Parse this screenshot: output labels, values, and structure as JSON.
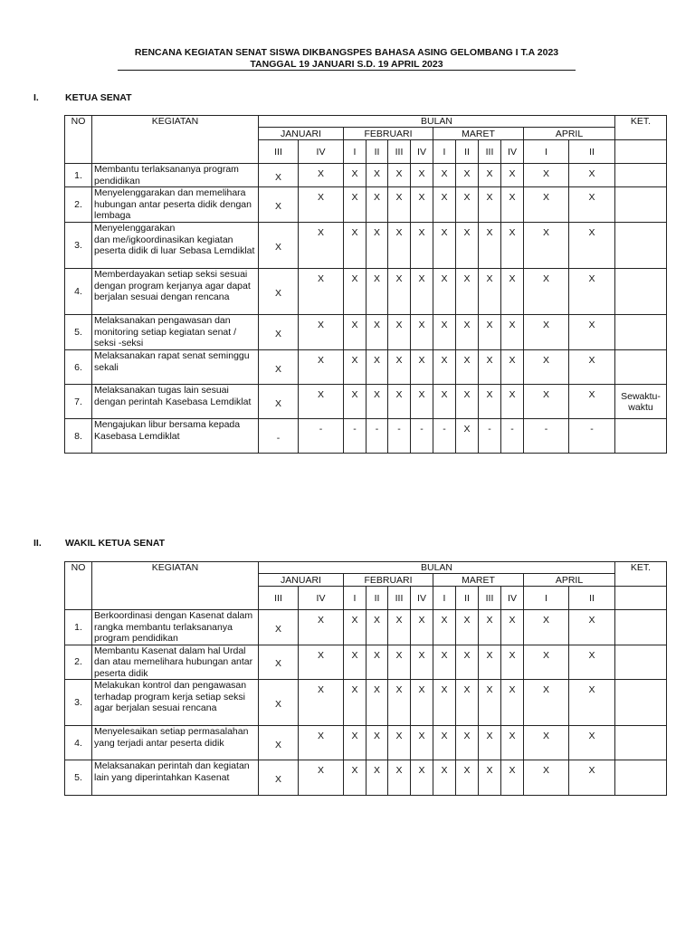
{
  "document": {
    "title_line1": "RENCANA KEGIATAN SENAT SISWA DIKBANGSPES BAHASA ASING GELOMBANG I T.A 2023",
    "title_line2": "TANGGAL 19 JANUARI S.D. 19 APRIL 2023"
  },
  "headers": {
    "no": "NO",
    "kegiatan": "KEGIATAN",
    "bulan": "BULAN",
    "ket": "KET.",
    "months": [
      {
        "name": "JANUARI",
        "weeks": [
          "III",
          "IV"
        ]
      },
      {
        "name": "FEBRUARI",
        "weeks": [
          "I",
          "II",
          "III",
          "IV"
        ]
      },
      {
        "name": "MARET",
        "weeks": [
          "I",
          "II",
          "III",
          "IV"
        ]
      },
      {
        "name": "APRIL",
        "weeks": [
          "I",
          "II"
        ]
      }
    ]
  },
  "sections": [
    {
      "number": "I.",
      "title": "KETUA SENAT",
      "rows": [
        {
          "no": "1.",
          "kegiatan": "Membantu      terlaksananya program pendidikan",
          "marks": [
            "X",
            "X",
            "X",
            "X",
            "X",
            "X",
            "X",
            "X",
            "X",
            "X",
            "X",
            "X"
          ],
          "ket": ""
        },
        {
          "no": "2.",
          "kegiatan": "Menyelenggarakan    dan memelihara hubungan antar peserta didik dengan lembaga",
          "marks": [
            "X",
            "X",
            "X",
            "X",
            "X",
            "X",
            "X",
            "X",
            "X",
            "X",
            "X",
            "X"
          ],
          "ket": ""
        },
        {
          "no": "3.",
          "kegiatan": "Menyelenggarakan\ndan me/igkoordinasikan    kegiatan peserta didik di luar Sebasa Lemdiklat",
          "marks": [
            "X",
            "X",
            "X",
            "X",
            "X",
            "X",
            "X",
            "X",
            "X",
            "X",
            "X",
            "X"
          ],
          "ket": ""
        },
        {
          "no": "4.",
          "kegiatan": "Memberdayakan   setiap   seksi sesuai dengan program kerjanya agar dapat berjalan sesuai dengan rencana",
          "marks": [
            "X",
            "X",
            "X",
            "X",
            "X",
            "X",
            "X",
            "X",
            "X",
            "X",
            "X",
            "X"
          ],
          "ket": ""
        },
        {
          "no": "5.",
          "kegiatan": "Melaksanakan       pengawasan dan monitoring  setiap  kegiatan senat  / seksi -seksi",
          "marks": [
            "X",
            "X",
            "X",
            "X",
            "X",
            "X",
            "X",
            "X",
            "X",
            "X",
            "X",
            "X"
          ],
          "ket": ""
        },
        {
          "no": "6.",
          "kegiatan": "Melaksanakan   rapat   senat seminggu sekali",
          "marks": [
            "X",
            "X",
            "X",
            "X",
            "X",
            "X",
            "X",
            "X",
            "X",
            "X",
            "X",
            "X"
          ],
          "ket": ""
        },
        {
          "no": "7.",
          "kegiatan": "Melaksanakan tugas lain sesuai dengan perintah Kasebasa Lemdiklat",
          "marks": [
            "X",
            "X",
            "X",
            "X",
            "X",
            "X",
            "X",
            "X",
            "X",
            "X",
            "X",
            "X"
          ],
          "ket": "Sewaktu-\nwaktu"
        },
        {
          "no": "8.",
          "kegiatan": "Mengajukan   libur   bersama kepada Kasebasa Lemdiklat",
          "marks": [
            "-",
            "-",
            "-",
            "-",
            "-",
            "-",
            "-",
            "X",
            "-",
            "-",
            "-",
            "-"
          ],
          "ket": ""
        }
      ]
    },
    {
      "number": "II.",
      "title": "WAKIL KETUA SENAT",
      "rows": [
        {
          "no": "1.",
          "kegiatan": "Berkoordinasi  dengan  Kasenat dalam rangka     membantu terlaksananya program pendidikan",
          "marks": [
            "X",
            "X",
            "X",
            "X",
            "X",
            "X",
            "X",
            "X",
            "X",
            "X",
            "X",
            "X"
          ],
          "ket": ""
        },
        {
          "no": "2.",
          "kegiatan": "Membantu Kasenat dalam hal Urdal dan atau  memelihara  hubungan antar peserta didik",
          "marks": [
            "X",
            "X",
            "X",
            "X",
            "X",
            "X",
            "X",
            "X",
            "X",
            "X",
            "X",
            "X"
          ],
          "ket": ""
        },
        {
          "no": "3.",
          "kegiatan": "Melakukan  kontrol   dan pengawasan terhadap  program kerja  setiap  seksi agar berjalan sesuai rencana",
          "marks": [
            "X",
            "X",
            "X",
            "X",
            "X",
            "X",
            "X",
            "X",
            "X",
            "X",
            "X",
            "X"
          ],
          "ket": ""
        },
        {
          "no": "4.",
          "kegiatan": "Menyelesaikan    setiap permasalahan yang terjadi antar peserta didik",
          "marks": [
            "X",
            "X",
            "X",
            "X",
            "X",
            "X",
            "X",
            "X",
            "X",
            "X",
            "X",
            "X"
          ],
          "ket": ""
        },
        {
          "no": "5.",
          "kegiatan": "Melaksanakan   perintah   dan kegiatan lain yang diperintahkan Kasenat",
          "marks": [
            "X",
            "X",
            "X",
            "X",
            "X",
            "X",
            "X",
            "X",
            "X",
            "X",
            "X",
            "X"
          ],
          "ket": ""
        }
      ]
    }
  ]
}
